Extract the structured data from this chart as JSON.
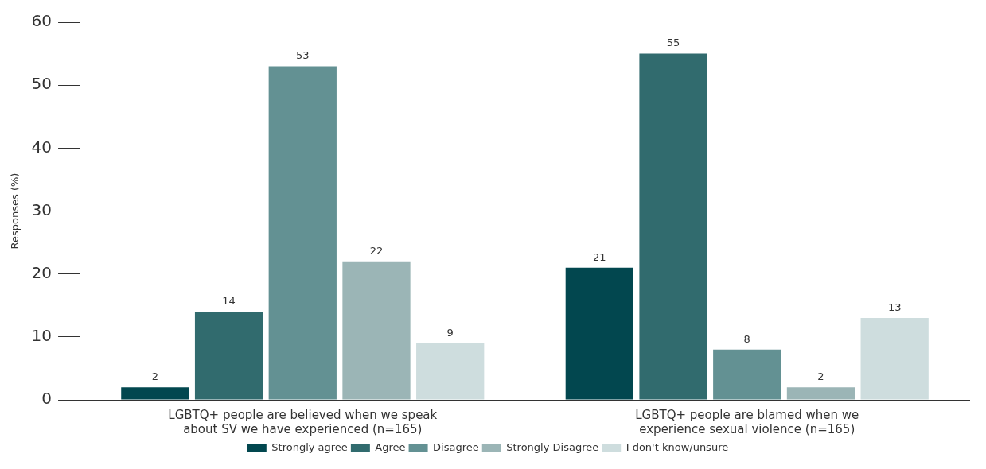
{
  "chart_data": {
    "type": "bar",
    "ylabel": "Responses (%)",
    "categories": [
      "LGBTQ+ people are believed when we speak about SV we have experienced (n=165)",
      "LGBTQ+ people are blamed when we experience sexual violence (n=165)"
    ],
    "series": [
      {
        "name": "Strongly agree",
        "color": "#02474f",
        "values": [
          2,
          21
        ]
      },
      {
        "name": "Agree",
        "color": "#316b6e",
        "values": [
          14,
          55
        ]
      },
      {
        "name": "Disagree",
        "color": "#639193",
        "values": [
          53,
          8
        ]
      },
      {
        "name": "Strongly Disagree",
        "color": "#9bb5b6",
        "values": [
          22,
          2
        ]
      },
      {
        "name": "I don't know/unsure",
        "color": "#ceddde",
        "values": [
          9,
          13
        ]
      }
    ],
    "ylim": [
      0,
      60
    ],
    "yticks": [
      0,
      10,
      20,
      30,
      40,
      50,
      60
    ],
    "grid": false,
    "legend": "bottom",
    "data_labels": true
  }
}
